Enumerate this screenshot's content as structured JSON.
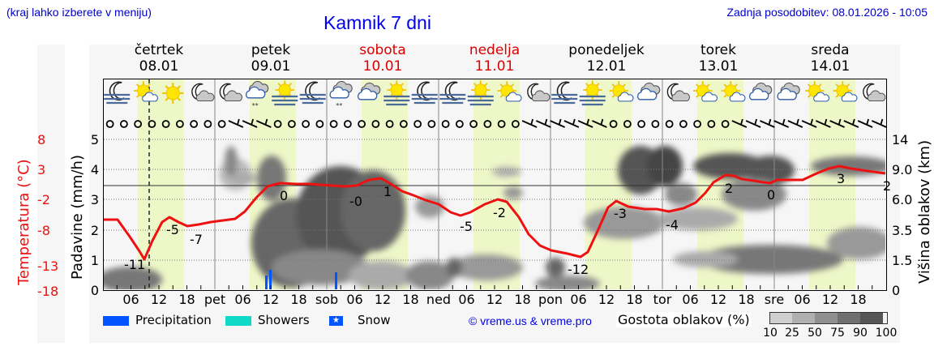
{
  "header": {
    "region_hint": "(kraj lahko izberete v meniju)",
    "title": "Kamnik 7 dni",
    "last_update": "Zadnja posodobitev: 08.01.2026 - 10:05"
  },
  "days": [
    {
      "name": "četrtek",
      "date": "08.01",
      "weekend": false
    },
    {
      "name": "petek",
      "date": "09.01",
      "weekend": false
    },
    {
      "name": "sobota",
      "date": "10.01",
      "weekend": true
    },
    {
      "name": "nedelja",
      "date": "11.01",
      "weekend": true
    },
    {
      "name": "ponedeljek",
      "date": "12.01",
      "weekend": false
    },
    {
      "name": "torek",
      "date": "13.01",
      "weekend": false
    },
    {
      "name": "sreda",
      "date": "14.01",
      "weekend": false
    }
  ],
  "x_ticks": [
    "06",
    "12",
    "18",
    "pet",
    "06",
    "12",
    "18",
    "sob",
    "06",
    "12",
    "18",
    "ned",
    "06",
    "12",
    "18",
    "pon",
    "06",
    "12",
    "18",
    "tor",
    "06",
    "12",
    "18",
    "sre",
    "06",
    "12",
    "18"
  ],
  "axes": {
    "temp_label": "Temperatura (°C)",
    "precip_label": "Padavine (mm/h)",
    "cloud_height_label": "Višina oblakov (km)",
    "temp_ticks": [
      "8",
      "3",
      "-2",
      "-8",
      "-13",
      "-18"
    ],
    "precip_ticks": [
      "0",
      "1",
      "2",
      "3",
      "4",
      "5"
    ],
    "cloud_ticks": [
      "0",
      "1.5",
      "3.5",
      "6.0",
      "9.0",
      "14"
    ]
  },
  "legend": {
    "precipitation": "Precipitation",
    "showers": "Showers",
    "snow": "Snow",
    "copyright": "© vreme.us & vreme.pro",
    "cloud_density_title": "Gostota oblakov (%)",
    "cloud_density_ticks": [
      "10",
      "25",
      "50",
      "75",
      "90",
      "100"
    ],
    "colors": {
      "precipitation": "#0055ff",
      "showers": "#11d9c8",
      "snow": "#0055ff"
    }
  },
  "icons": [
    "moon-fog",
    "sun-cloud",
    "sun",
    "moon-cloud",
    "moon-cloud",
    "cloud-snow",
    "sun-fog",
    "moon-fog",
    "cloud-snow",
    "cloud",
    "sun-fog",
    "moon-fog",
    "moon-fog",
    "sun-fog",
    "sun-cloud",
    "moon-cloud",
    "moon-fog",
    "sun-fog",
    "sun-cloud",
    "cloud",
    "moon-cloud",
    "sun-cloud",
    "sun-cloud",
    "cloud",
    "cloud",
    "sun-cloud",
    "sun-cloud",
    "moon-cloud"
  ],
  "colors": {
    "temperature_line": "#ee0000",
    "daylight_band": "#eef7c8",
    "weekend_text": "#dd0000"
  },
  "chart_data": {
    "type": "line",
    "title": "Kamnik 7 dni",
    "xlabel": "",
    "ylabel": "Temperatura (°C)",
    "x_range": [
      "08.01 00:00",
      "14.01 24:00"
    ],
    "series": [
      {
        "name": "Temperatura (°C)",
        "points_hours": [
          0,
          6,
          10,
          14,
          18,
          24,
          30,
          36,
          42,
          48,
          54,
          60,
          66,
          72,
          78,
          84,
          90,
          96,
          102,
          108,
          114,
          120,
          126,
          132,
          138,
          144,
          150,
          156,
          162,
          168
        ],
        "values": [
          -4,
          -8,
          -11,
          -5,
          -7,
          -6,
          -5,
          -2,
          0,
          0,
          0,
          0,
          1,
          -1,
          -3,
          -5,
          -2,
          -8,
          -11,
          -12,
          -3,
          -4,
          -4,
          -2,
          2,
          1,
          0,
          1,
          3,
          2
        ]
      }
    ],
    "annotations": [
      "-11",
      "-5",
      "-7",
      "0",
      "-0",
      "1",
      "-5",
      "-2",
      "-12",
      "-3",
      "-4",
      "2",
      "0",
      "3",
      "2"
    ],
    "precipitation_bars": [
      {
        "day": "09.01",
        "hour": 12,
        "mm_h": 0.5,
        "type": "snow"
      },
      {
        "day": "09.01",
        "hour": 13,
        "mm_h": 0.7,
        "type": "snow"
      },
      {
        "day": "10.01",
        "hour": 1,
        "mm_h": 0.6,
        "type": "snow"
      }
    ],
    "secondary_axes": {
      "precip_ylim": [
        0,
        5
      ],
      "cloud_height_km": [
        "0",
        "1.5",
        "3.5",
        "6.0",
        "9.0",
        "14"
      ]
    },
    "grid": true
  }
}
